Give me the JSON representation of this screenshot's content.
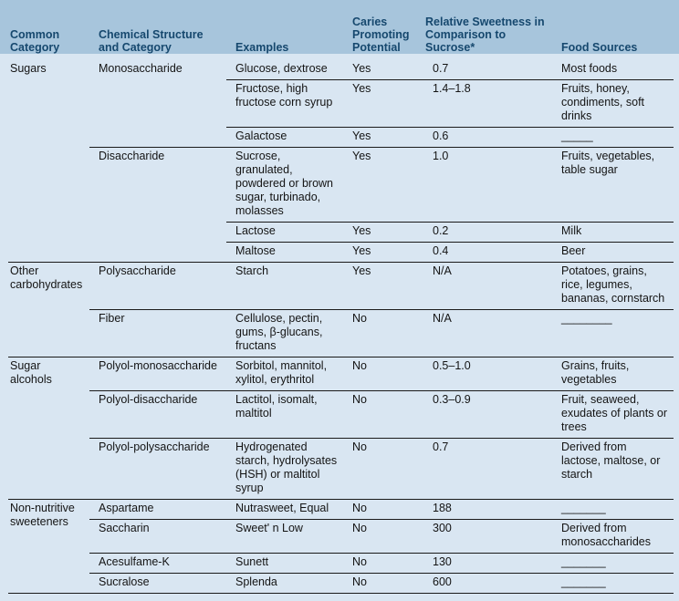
{
  "colors": {
    "header_band": "#a7c5dc",
    "body_background": "#d9e6f2",
    "header_text": "#16486e",
    "body_text": "#141414",
    "rule_line": "#1a1a1a"
  },
  "columns": [
    "Common Category",
    "Chemical Structure and Category",
    "Examples",
    "Caries Promoting Potential",
    "Relative Sweetness in Comparison to Sucrose*",
    "Food Sources"
  ],
  "rows": [
    {
      "category": "Sugars",
      "structure": "Monosaccharide",
      "examples": "Glucose, dextrose",
      "caries": "Yes",
      "sweetness": "0.7",
      "food": "Most foods"
    },
    {
      "examples": "Fructose, high fructose corn syrup",
      "caries": "Yes",
      "sweetness": "1.4–1.8",
      "food": "Fruits, honey, condiments, soft drinks"
    },
    {
      "examples": "Galactose",
      "caries": "Yes",
      "sweetness": "0.6",
      "food": "_____"
    },
    {
      "structure": "Disaccharide",
      "examples": "Sucrose, granulated, powdered or brown sugar, turbinado, molasses",
      "caries": "Yes",
      "sweetness": "1.0",
      "food": "Fruits, vegetables, table sugar"
    },
    {
      "examples": "Lactose",
      "caries": "Yes",
      "sweetness": "0.2",
      "food": "Milk"
    },
    {
      "examples": "Maltose",
      "caries": "Yes",
      "sweetness": "0.4",
      "food": "Beer"
    },
    {
      "category": "Other carbohydrates",
      "structure": "Polysaccharide",
      "examples": "Starch",
      "caries": "Yes",
      "sweetness": "N/A",
      "food": "Potatoes, grains, rice, legumes, bananas, cornstarch"
    },
    {
      "structure": "Fiber",
      "examples": "Cellulose, pectin, gums, β-glucans, fructans",
      "caries": "No",
      "sweetness": "N/A",
      "food": "________"
    },
    {
      "category": "Sugar alcohols",
      "structure": "Polyol-monosaccharide",
      "examples": "Sorbitol, mannitol, xylitol, erythritol",
      "caries": "No",
      "sweetness": "0.5–1.0",
      "food": "Grains, fruits, vegetables"
    },
    {
      "structure": "Polyol-disaccharide",
      "examples": "Lactitol, isomalt, maltitol",
      "caries": "No",
      "sweetness": "0.3–0.9",
      "food": "Fruit, seaweed, exudates of plants or trees"
    },
    {
      "structure": "Polyol-polysaccharide",
      "examples": "Hydrogenated starch, hydrolysates (HSH) or maltitol syrup",
      "caries": "No",
      "sweetness": "0.7",
      "food": "Derived from lactose, maltose, or starch"
    },
    {
      "category": "Non-nutritive sweeteners",
      "structure": "Aspartame",
      "examples": "Nutrasweet, Equal",
      "caries": "No",
      "sweetness": "188",
      "food": "_______"
    },
    {
      "structure": "Saccharin",
      "examples": "Sweet' n Low",
      "caries": "No",
      "sweetness": "300",
      "food": "Derived from monosaccharides"
    },
    {
      "structure": "Acesulfame-K",
      "examples": "Sunett",
      "caries": "No",
      "sweetness": "130",
      "food": "_______"
    },
    {
      "structure": "Sucralose",
      "examples": "Splenda",
      "caries": "No",
      "sweetness": "600",
      "food": "_______"
    }
  ]
}
